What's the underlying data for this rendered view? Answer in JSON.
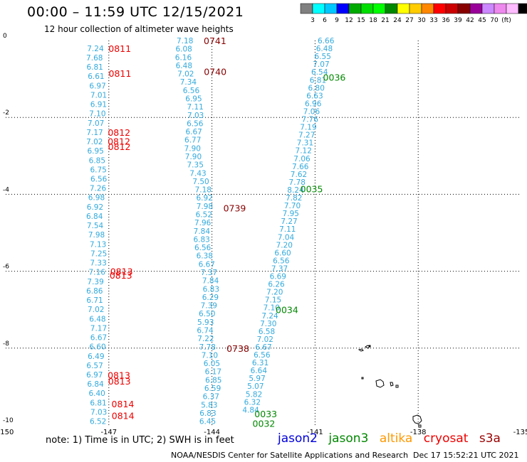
{
  "header": {
    "title": "00:00 – 11:59 UTC 12/15/2021",
    "subtitle": "12 hour collection of altimeter wave heights"
  },
  "colorbar": {
    "colors": [
      "#808080",
      "#00ffff",
      "#00c8ff",
      "#0000ff",
      "#00aa00",
      "#00dd00",
      "#00ff00",
      "#008800",
      "#ffff00",
      "#ffcc00",
      "#ff8800",
      "#ff0000",
      "#cc0000",
      "#880000",
      "#990099",
      "#cc88ff",
      "#ee88ee",
      "#ffbbff",
      "#000000"
    ],
    "labels": [
      "3",
      "6",
      "9",
      "12",
      "15",
      "18",
      "21",
      "24",
      "27",
      "30",
      "33",
      "36",
      "39",
      "42",
      "45",
      "70",
      "(ft)"
    ]
  },
  "axes": {
    "x_ticks": [
      "-150",
      "-147",
      "-144",
      "-141",
      "-138",
      "-135"
    ],
    "y_ticks": [
      "0",
      "-2",
      "-4",
      "-6",
      "-8",
      "-10"
    ]
  },
  "satellites": [
    {
      "name": "jason2",
      "color": "#0000dd"
    },
    {
      "name": "jason3",
      "color": "#008800"
    },
    {
      "name": "altika",
      "color": "#ff9900"
    },
    {
      "name": "cryosat",
      "color": "#ee0000"
    },
    {
      "name": "s3a",
      "color": "#990000"
    }
  ],
  "footer": {
    "note": "note:  1) Time is in UTC; 2) SWH is in feet",
    "credit": "NOAA/NESDIS Center for Satellite Applications and Research",
    "date": "Dec 17 15:52:21 UTC 2021"
  },
  "tracks": {
    "wh_color": "#33aadd",
    "t1": {
      "heights": [
        "7.24",
        "7.68",
        "6.81",
        "6.61",
        "6.97",
        "7.01",
        "6.91",
        "7.10",
        "7.07",
        "7.17",
        "7.02",
        "6.95",
        "6.85",
        "6.75",
        "6.56",
        "7.26",
        "6.98",
        "6.92",
        "6.84",
        "7.54",
        "7.98",
        "7.13",
        "7.25",
        "7.33",
        "7.16",
        "7.39",
        "6.86",
        "6.71",
        "7.02",
        "6.48",
        "7.17",
        "6.67",
        "6.60",
        "6.49",
        "6.57",
        "6.97",
        "6.84",
        "6.40",
        "6.81",
        "7.03",
        "6.52"
      ],
      "times": [
        {
          "label": "0811",
          "color": "#ee0000",
          "lat": -0.2
        },
        {
          "label": "0811",
          "color": "#ee0000",
          "lat": -0.85
        },
        {
          "label": "0812",
          "color": "#ee0000",
          "lat": -2.38
        },
        {
          "label": "0812",
          "color": "#ee0000",
          "lat": -2.62
        },
        {
          "label": "0812",
          "color": "#ee0000",
          "lat": -2.75
        },
        {
          "label": "0813",
          "color": "#ee0000",
          "lat": -6.0
        },
        {
          "label": "0813",
          "color": "#ee0000",
          "lat": -6.1
        },
        {
          "label": "0813",
          "color": "#ee0000",
          "lat": -8.7
        },
        {
          "label": "0813",
          "color": "#ee0000",
          "lat": -8.85
        },
        {
          "label": "0814",
          "color": "#ee0000",
          "lat": -9.45
        },
        {
          "label": "0814",
          "color": "#ee0000",
          "lat": -9.75
        }
      ]
    },
    "t2": {
      "heights": [
        "7.18",
        "6.08",
        "6.16",
        "6.48",
        "7.02",
        "7.34",
        "6.56",
        "6.95",
        "7.11",
        "7.03",
        "6.56",
        "6.67",
        "6.77",
        "7.90",
        "7.90",
        "7.35",
        "7.43",
        "7.50",
        "7.18",
        "6.92",
        "7.98",
        "6.52",
        "7.96",
        "7.84",
        "6.83",
        "6.56",
        "6.38",
        "6.67",
        "7.37",
        "7.84",
        "6.83",
        "6.29",
        "7.39",
        "6.50",
        "5.93",
        "6.74",
        "7.22",
        "7.78",
        "7.10",
        "6.05",
        "6.17",
        "6.85",
        "6.59",
        "6.37",
        "5.83",
        "6.83",
        "6.45"
      ],
      "times": [
        {
          "label": "0741",
          "color": "#880000",
          "lat": 0.0
        },
        {
          "label": "0740",
          "color": "#880000",
          "lat": -0.8
        },
        {
          "label": "0739",
          "color": "#880000",
          "lat": -4.35
        },
        {
          "label": "0738",
          "color": "#880000",
          "lat": -8.0
        }
      ]
    },
    "t3": {
      "heights": [
        "6.66",
        "6.48",
        "6.55",
        "7.07",
        "6.54",
        "6.81",
        "6.80",
        "6.63",
        "6.96",
        "7.06",
        "7.76",
        "7.19",
        "7.27",
        "7.31",
        "7.12",
        "7.06",
        "7.66",
        "7.62",
        "7.78",
        "8.24",
        "7.82",
        "7.70",
        "7.95",
        "7.27",
        "7.11",
        "7.04",
        "7.20",
        "6.60",
        "6.56",
        "7.37",
        "6.69",
        "6.26",
        "7.20",
        "7.15",
        "7.10",
        "7.24",
        "7.30",
        "6.58",
        "7.02",
        "6.67",
        "6.56",
        "6.31",
        "6.64",
        "5.97",
        "5.07",
        "5.82",
        "6.32",
        "4.84"
      ],
      "times": [
        {
          "label": "0036",
          "color": "#008800",
          "lat": -0.95
        },
        {
          "label": "0035",
          "color": "#008800",
          "lat": -3.85
        },
        {
          "label": "0034",
          "color": "#008800",
          "lat": -7.0
        },
        {
          "label": "0033",
          "color": "#008800",
          "lat": -9.7
        },
        {
          "label": "0032",
          "color": "#008800",
          "lat": -9.95
        }
      ]
    }
  }
}
